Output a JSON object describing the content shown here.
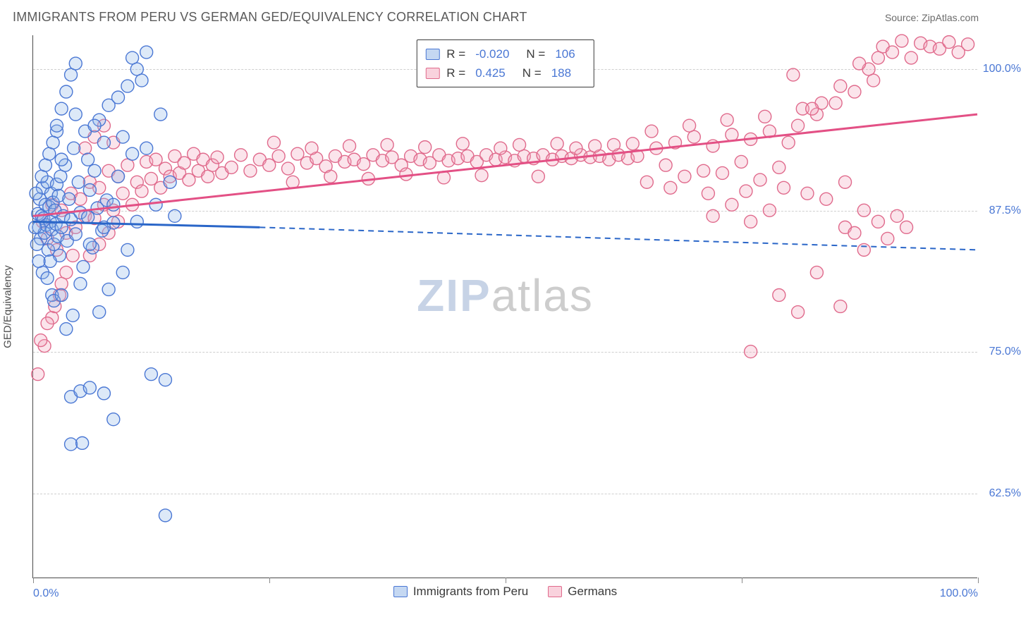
{
  "title": "IMMIGRANTS FROM PERU VS GERMAN GED/EQUIVALENCY CORRELATION CHART",
  "source_label": "Source: ZipAtlas.com",
  "watermark": {
    "left": "ZIP",
    "right": "atlas"
  },
  "chart": {
    "type": "scatter",
    "background_color": "#ffffff",
    "grid_color": "#cfcfcf",
    "axis_color": "#4a4a4a",
    "tick_label_color": "#4a77d4",
    "axis_title_color": "#4a4a4a",
    "tick_fontsize": 16,
    "title_fontsize": 18,
    "marker_radius": 9,
    "marker_stroke_width": 1.4,
    "marker_fill_opacity": 0.3,
    "regression_line_width": 3,
    "xlim": [
      0,
      100
    ],
    "ylim": [
      55,
      103
    ],
    "yaxis_title": "GED/Equivalency",
    "yticks": [
      {
        "v": 62.5,
        "label": "62.5%"
      },
      {
        "v": 75.0,
        "label": "75.0%"
      },
      {
        "v": 87.5,
        "label": "87.5%"
      },
      {
        "v": 100.0,
        "label": "100.0%"
      }
    ],
    "xticks_minor": [
      0,
      25,
      50,
      75,
      100
    ],
    "xtick_labels": [
      {
        "v": 0,
        "label": "0.0%",
        "align": "left"
      },
      {
        "v": 100,
        "label": "100.0%",
        "align": "right"
      }
    ],
    "series": [
      {
        "id": "peru",
        "label": "Immigrants from Peru",
        "fill_color": "#8fb5e9",
        "stroke_color": "#4a77d4",
        "swatch_fill": "#c5d8f2",
        "swatch_border": "#4a77d4",
        "R": "-0.020",
        "N": "106",
        "regression": {
          "solid_x1": 0,
          "solid_y1": 86.5,
          "solid_x2": 24,
          "solid_y2": 86.0,
          "dash_x1": 24,
          "dash_y1": 86.0,
          "dash_x2": 100,
          "dash_y2": 84.0,
          "color": "#2a66c8"
        },
        "points": [
          [
            0.5,
            87.2
          ],
          [
            0.6,
            86.0
          ],
          [
            0.7,
            88.5
          ],
          [
            0.8,
            85.0
          ],
          [
            0.9,
            87.0
          ],
          [
            1.0,
            89.5
          ],
          [
            1.1,
            86.8
          ],
          [
            1.2,
            85.5
          ],
          [
            1.3,
            88.0
          ],
          [
            1.4,
            86.2
          ],
          [
            1.5,
            90.0
          ],
          [
            1.6,
            84.0
          ],
          [
            1.7,
            87.8
          ],
          [
            1.8,
            86.5
          ],
          [
            1.9,
            89.0
          ],
          [
            2.0,
            85.8
          ],
          [
            2.1,
            88.2
          ],
          [
            2.2,
            84.5
          ],
          [
            2.3,
            87.5
          ],
          [
            2.4,
            86.3
          ],
          [
            2.5,
            89.8
          ],
          [
            2.6,
            85.2
          ],
          [
            2.7,
            88.8
          ],
          [
            2.8,
            83.5
          ],
          [
            2.9,
            90.5
          ],
          [
            3.0,
            86.0
          ],
          [
            3.2,
            87.0
          ],
          [
            3.4,
            91.5
          ],
          [
            3.6,
            84.8
          ],
          [
            3.8,
            88.5
          ],
          [
            4.0,
            86.7
          ],
          [
            4.3,
            93.0
          ],
          [
            4.5,
            85.4
          ],
          [
            4.8,
            90.0
          ],
          [
            5.0,
            87.3
          ],
          [
            5.3,
            82.5
          ],
          [
            5.5,
            94.5
          ],
          [
            5.8,
            86.9
          ],
          [
            6.0,
            89.3
          ],
          [
            6.3,
            84.2
          ],
          [
            6.5,
            91.0
          ],
          [
            6.8,
            87.7
          ],
          [
            7.0,
            95.5
          ],
          [
            7.3,
            85.7
          ],
          [
            7.5,
            93.5
          ],
          [
            7.8,
            88.4
          ],
          [
            8.0,
            96.8
          ],
          [
            8.5,
            86.4
          ],
          [
            9.0,
            97.5
          ],
          [
            9.5,
            94.0
          ],
          [
            10.0,
            98.5
          ],
          [
            10.5,
            101.0
          ],
          [
            11.0,
            100.0
          ],
          [
            11.5,
            99.0
          ],
          [
            12.0,
            101.5
          ],
          [
            3.5,
            77.0
          ],
          [
            4.2,
            78.2
          ],
          [
            2.0,
            80.0
          ],
          [
            5.0,
            81.0
          ],
          [
            1.0,
            82.0
          ],
          [
            3.0,
            92.0
          ],
          [
            4.5,
            96.0
          ],
          [
            2.5,
            94.5
          ],
          [
            6.0,
            84.5
          ],
          [
            1.8,
            83.0
          ],
          [
            2.2,
            79.5
          ],
          [
            0.4,
            84.5
          ],
          [
            0.6,
            83.0
          ],
          [
            0.9,
            90.5
          ],
          [
            1.3,
            91.5
          ],
          [
            1.7,
            92.5
          ],
          [
            2.1,
            93.5
          ],
          [
            2.5,
            95.0
          ],
          [
            3.0,
            96.5
          ],
          [
            3.5,
            98.0
          ],
          [
            4.0,
            99.5
          ],
          [
            4.5,
            100.5
          ],
          [
            1.5,
            81.5
          ],
          [
            3.0,
            80.0
          ],
          [
            4.0,
            71.0
          ],
          [
            5.0,
            71.5
          ],
          [
            6.0,
            71.8
          ],
          [
            7.5,
            71.3
          ],
          [
            8.5,
            69.0
          ],
          [
            12.5,
            73.0
          ],
          [
            14.0,
            72.5
          ],
          [
            4.0,
            66.8
          ],
          [
            5.2,
            66.9
          ],
          [
            14.0,
            60.5
          ],
          [
            15.0,
            87.0
          ],
          [
            14.5,
            90.0
          ],
          [
            13.0,
            88.0
          ],
          [
            9.5,
            82.0
          ],
          [
            8.0,
            80.5
          ],
          [
            7.0,
            78.5
          ],
          [
            11.0,
            86.5
          ],
          [
            10.0,
            84.0
          ],
          [
            12.0,
            93.0
          ],
          [
            13.5,
            96.0
          ],
          [
            6.5,
            95.0
          ],
          [
            5.8,
            92.0
          ],
          [
            9.0,
            90.5
          ],
          [
            10.5,
            92.5
          ],
          [
            8.5,
            88.0
          ],
          [
            7.5,
            86.0
          ],
          [
            0.3,
            89.0
          ],
          [
            0.2,
            86.0
          ]
        ]
      },
      {
        "id": "germans",
        "label": "Germans",
        "fill_color": "#f2a6bd",
        "stroke_color": "#e06a8c",
        "swatch_fill": "#f9d2dd",
        "swatch_border": "#e06a8c",
        "R": "0.425",
        "N": "188",
        "regression": {
          "solid_x1": 0,
          "solid_y1": 87.0,
          "solid_x2": 100,
          "solid_y2": 96.0,
          "color": "#e35085"
        },
        "points": [
          [
            1.0,
            86.5
          ],
          [
            1.5,
            85.0
          ],
          [
            2.0,
            88.0
          ],
          [
            2.5,
            84.0
          ],
          [
            3.0,
            87.5
          ],
          [
            3.5,
            85.5
          ],
          [
            4.0,
            89.0
          ],
          [
            4.5,
            86.0
          ],
          [
            5.0,
            88.5
          ],
          [
            5.5,
            87.0
          ],
          [
            6.0,
            90.0
          ],
          [
            6.5,
            86.8
          ],
          [
            7.0,
            89.5
          ],
          [
            7.5,
            88.0
          ],
          [
            8.0,
            91.0
          ],
          [
            8.5,
            87.5
          ],
          [
            9.0,
            90.5
          ],
          [
            9.5,
            89.0
          ],
          [
            10.0,
            91.5
          ],
          [
            10.5,
            88.0
          ],
          [
            11.0,
            90.0
          ],
          [
            11.5,
            89.2
          ],
          [
            12.0,
            91.8
          ],
          [
            12.5,
            90.3
          ],
          [
            13.0,
            92.0
          ],
          [
            13.5,
            89.5
          ],
          [
            14.0,
            91.2
          ],
          [
            14.5,
            90.5
          ],
          [
            15.0,
            92.3
          ],
          [
            15.5,
            90.8
          ],
          [
            16.0,
            91.7
          ],
          [
            16.5,
            90.2
          ],
          [
            17.0,
            92.5
          ],
          [
            17.5,
            91.0
          ],
          [
            18.0,
            92.0
          ],
          [
            18.5,
            90.5
          ],
          [
            19.0,
            91.5
          ],
          [
            19.5,
            92.2
          ],
          [
            20.0,
            90.8
          ],
          [
            21.0,
            91.3
          ],
          [
            22.0,
            92.4
          ],
          [
            23.0,
            91.0
          ],
          [
            24.0,
            92.0
          ],
          [
            25.0,
            91.5
          ],
          [
            26.0,
            92.3
          ],
          [
            27.0,
            91.2
          ],
          [
            28.0,
            92.5
          ],
          [
            29.0,
            91.7
          ],
          [
            30.0,
            92.1
          ],
          [
            31.0,
            91.4
          ],
          [
            32.0,
            92.3
          ],
          [
            33.0,
            91.8
          ],
          [
            34.0,
            92.0
          ],
          [
            35.0,
            91.6
          ],
          [
            36.0,
            92.4
          ],
          [
            37.0,
            91.9
          ],
          [
            38.0,
            92.2
          ],
          [
            39.0,
            91.5
          ],
          [
            40.0,
            92.3
          ],
          [
            41.0,
            92.0
          ],
          [
            42.0,
            91.7
          ],
          [
            43.0,
            92.4
          ],
          [
            44.0,
            91.9
          ],
          [
            45.0,
            92.1
          ],
          [
            46.0,
            92.3
          ],
          [
            47.0,
            91.8
          ],
          [
            48.0,
            92.4
          ],
          [
            49.0,
            92.0
          ],
          [
            50.0,
            92.2
          ],
          [
            51.0,
            91.9
          ],
          [
            52.0,
            92.3
          ],
          [
            53.0,
            92.1
          ],
          [
            54.0,
            92.4
          ],
          [
            55.0,
            92.0
          ],
          [
            56.0,
            92.3
          ],
          [
            57.0,
            92.1
          ],
          [
            58.0,
            92.4
          ],
          [
            59.0,
            92.2
          ],
          [
            60.0,
            92.3
          ],
          [
            61.0,
            92.0
          ],
          [
            62.0,
            92.4
          ],
          [
            63.0,
            92.1
          ],
          [
            64.0,
            92.3
          ],
          [
            65.0,
            90.0
          ],
          [
            66.0,
            93.0
          ],
          [
            67.0,
            91.5
          ],
          [
            68.0,
            93.5
          ],
          [
            69.0,
            90.5
          ],
          [
            70.0,
            94.0
          ],
          [
            71.0,
            91.0
          ],
          [
            72.0,
            93.2
          ],
          [
            73.0,
            90.8
          ],
          [
            74.0,
            94.2
          ],
          [
            75.0,
            91.8
          ],
          [
            76.0,
            93.8
          ],
          [
            77.0,
            90.2
          ],
          [
            78.0,
            94.5
          ],
          [
            79.0,
            91.3
          ],
          [
            80.0,
            93.5
          ],
          [
            81.0,
            95.0
          ],
          [
            82.0,
            89.0
          ],
          [
            83.0,
            96.0
          ],
          [
            84.0,
            88.5
          ],
          [
            85.0,
            97.0
          ],
          [
            86.0,
            90.0
          ],
          [
            87.0,
            98.0
          ],
          [
            88.0,
            87.5
          ],
          [
            89.0,
            99.0
          ],
          [
            90.0,
            102.0
          ],
          [
            91.0,
            101.5
          ],
          [
            92.0,
            102.5
          ],
          [
            93.0,
            101.0
          ],
          [
            94.0,
            102.3
          ],
          [
            95.0,
            102.0
          ],
          [
            96.0,
            101.8
          ],
          [
            97.0,
            102.4
          ],
          [
            98.0,
            101.5
          ],
          [
            99.0,
            102.2
          ],
          [
            88.5,
            100.0
          ],
          [
            76.0,
            75.0
          ],
          [
            79.0,
            80.0
          ],
          [
            81.0,
            78.5
          ],
          [
            83.0,
            82.0
          ],
          [
            85.5,
            79.0
          ],
          [
            86.0,
            86.0
          ],
          [
            87.0,
            85.5
          ],
          [
            88.0,
            84.0
          ],
          [
            89.5,
            86.5
          ],
          [
            90.5,
            85.0
          ],
          [
            91.5,
            87.0
          ],
          [
            92.5,
            86.0
          ],
          [
            72.0,
            87.0
          ],
          [
            74.0,
            88.0
          ],
          [
            76.0,
            86.5
          ],
          [
            78.0,
            87.5
          ],
          [
            0.5,
            73.0
          ],
          [
            1.2,
            75.5
          ],
          [
            2.0,
            78.0
          ],
          [
            2.8,
            80.0
          ],
          [
            3.5,
            82.0
          ],
          [
            4.2,
            83.5
          ],
          [
            0.8,
            76.0
          ],
          [
            1.5,
            77.5
          ],
          [
            2.3,
            79.0
          ],
          [
            3.0,
            81.0
          ],
          [
            6.0,
            83.5
          ],
          [
            7.0,
            84.5
          ],
          [
            8.0,
            85.5
          ],
          [
            9.0,
            86.5
          ],
          [
            5.5,
            93.0
          ],
          [
            6.5,
            94.0
          ],
          [
            7.5,
            95.0
          ],
          [
            8.5,
            93.5
          ],
          [
            25.5,
            93.5
          ],
          [
            27.5,
            90.0
          ],
          [
            29.5,
            93.0
          ],
          [
            31.5,
            90.5
          ],
          [
            33.5,
            93.2
          ],
          [
            35.5,
            90.3
          ],
          [
            37.5,
            93.3
          ],
          [
            39.5,
            90.7
          ],
          [
            41.5,
            93.1
          ],
          [
            43.5,
            90.4
          ],
          [
            45.5,
            93.4
          ],
          [
            47.5,
            90.6
          ],
          [
            49.5,
            93.0
          ],
          [
            51.5,
            93.3
          ],
          [
            53.5,
            90.5
          ],
          [
            55.5,
            93.4
          ],
          [
            57.5,
            93.0
          ],
          [
            59.5,
            93.2
          ],
          [
            61.5,
            93.3
          ],
          [
            63.5,
            93.4
          ],
          [
            65.5,
            94.5
          ],
          [
            67.5,
            89.5
          ],
          [
            69.5,
            95.0
          ],
          [
            71.5,
            89.0
          ],
          [
            73.5,
            95.5
          ],
          [
            75.5,
            89.2
          ],
          [
            77.5,
            95.8
          ],
          [
            79.5,
            89.5
          ],
          [
            81.5,
            96.5
          ],
          [
            83.5,
            97.0
          ],
          [
            85.5,
            98.5
          ],
          [
            87.5,
            100.5
          ],
          [
            89.5,
            101.0
          ],
          [
            80.5,
            99.5
          ],
          [
            82.5,
            96.5
          ]
        ]
      }
    ]
  }
}
